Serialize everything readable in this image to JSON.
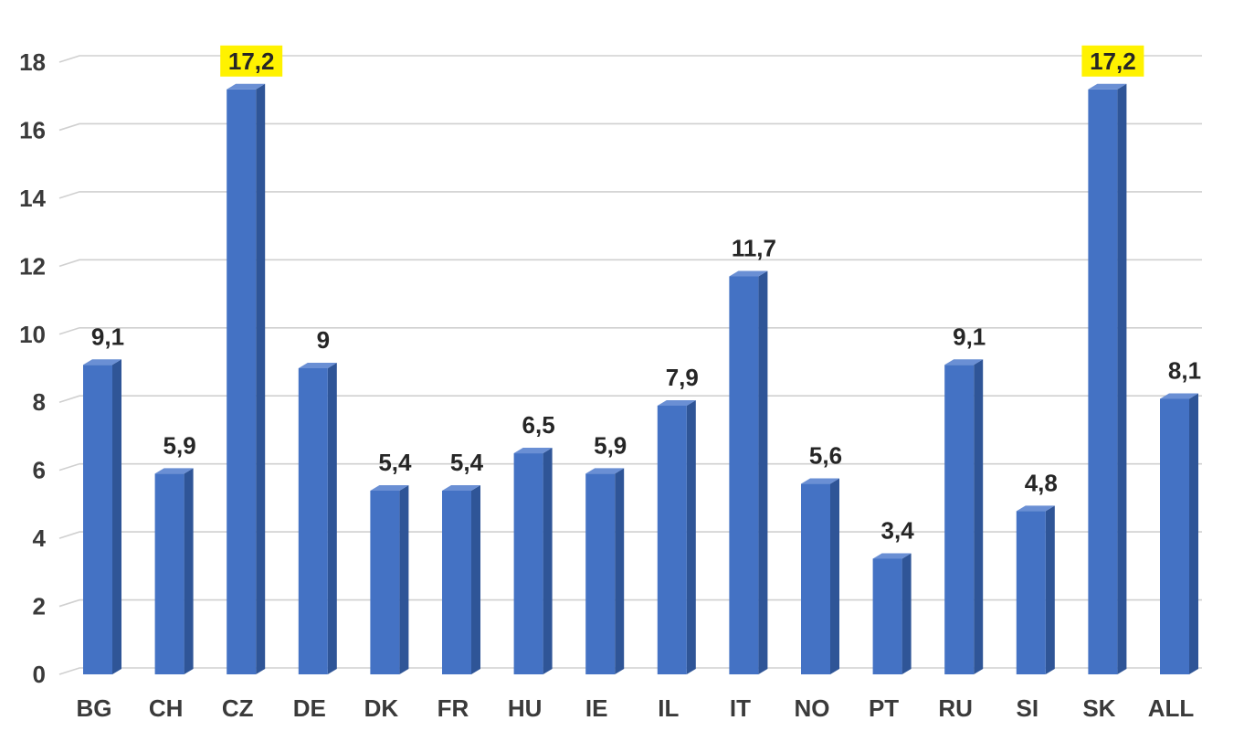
{
  "chart_data": {
    "type": "bar",
    "style": "3d-column",
    "title": "",
    "xlabel": "",
    "ylabel": "",
    "categories": [
      "BG",
      "CH",
      "CZ",
      "DE",
      "DK",
      "FR",
      "HU",
      "IE",
      "IL",
      "IT",
      "NO",
      "PT",
      "RU",
      "SI",
      "SK",
      "ALL"
    ],
    "values": [
      9.1,
      5.9,
      17.2,
      9,
      5.4,
      5.4,
      6.5,
      5.9,
      7.9,
      11.7,
      5.6,
      3.4,
      9.1,
      4.8,
      17.2,
      8.1
    ],
    "data_labels": [
      "9,1",
      "5,9",
      "17,2",
      "9",
      "5,4",
      "5,4",
      "6,5",
      "5,9",
      "7,9",
      "11,7",
      "5,6",
      "3,4",
      "9,1",
      "4,8",
      "17,2",
      "8,1"
    ],
    "highlighted_labels": [
      "CZ",
      "SK"
    ],
    "ylim": [
      0,
      18
    ],
    "yticks": [
      0,
      2,
      4,
      6,
      8,
      10,
      12,
      14,
      16,
      18
    ],
    "grid": true,
    "legend": "none",
    "colors": {
      "bar_front": "#4472C4",
      "bar_side": "#2F5597",
      "bar_top": "#6A8FD4",
      "highlight": "#FFF200",
      "gridline": "#D0D0D0",
      "axis_text": "#3A3A3A",
      "label_text": "#262626"
    }
  }
}
